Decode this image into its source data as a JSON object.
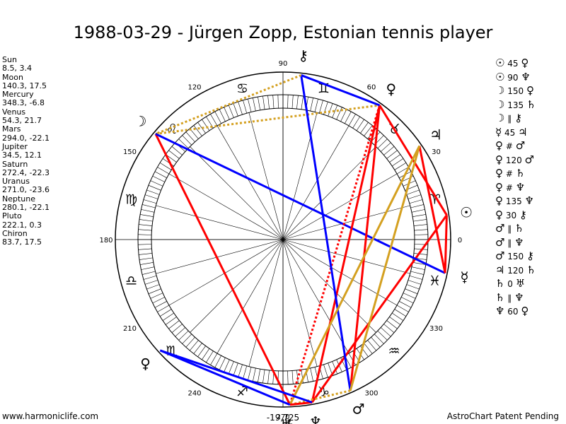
{
  "title": "1988-03-29 - Jürgen Zopp, Estonian tennis player",
  "footer": {
    "left": "www.harmoniclife.com",
    "right": "AstroChart Patent Pending"
  },
  "planet_list": [
    {
      "name": "Sun",
      "coords": "8.5, 3.4"
    },
    {
      "name": "Moon",
      "coords": "140.3, 17.5"
    },
    {
      "name": "Mercury",
      "coords": "348.3, -6.8"
    },
    {
      "name": "Venus",
      "coords": "54.3, 21.7"
    },
    {
      "name": "Mars",
      "coords": "294.0, -22.1"
    },
    {
      "name": "Jupiter",
      "coords": "34.5, 12.1"
    },
    {
      "name": "Saturn",
      "coords": "272.4, -22.3"
    },
    {
      "name": "Uranus",
      "coords": "271.0, -23.6"
    },
    {
      "name": "Neptune",
      "coords": "280.1, -22.1"
    },
    {
      "name": "Pluto",
      "coords": "222.1, 0.3"
    },
    {
      "name": "Chiron",
      "coords": "83.7, 17.5"
    }
  ],
  "aspect_list": [
    {
      "a": "☉",
      "asp": "45",
      "b": "♀"
    },
    {
      "a": "☉",
      "asp": "90",
      "b": "♆"
    },
    {
      "a": "☽",
      "asp": "150",
      "b": "♀"
    },
    {
      "a": "☽",
      "asp": "135",
      "b": "♄"
    },
    {
      "a": "☽",
      "asp": "∥",
      "b": "⚷"
    },
    {
      "a": "☿",
      "asp": "45",
      "b": "♃"
    },
    {
      "a": "♀",
      "asp": "#",
      "b": "♂"
    },
    {
      "a": "♀",
      "asp": "120",
      "b": "♂"
    },
    {
      "a": "♀",
      "asp": "#",
      "b": "♄"
    },
    {
      "a": "♀",
      "asp": "#",
      "b": "♆"
    },
    {
      "a": "♀",
      "asp": "135",
      "b": "♆"
    },
    {
      "a": "♀",
      "asp": "30",
      "b": "⚷"
    },
    {
      "a": "♂",
      "asp": "∥",
      "b": "♄"
    },
    {
      "a": "♂",
      "asp": "∥",
      "b": "♆"
    },
    {
      "a": "♂",
      "asp": "150",
      "b": "⚷"
    },
    {
      "a": "♃",
      "asp": "120",
      "b": "♄"
    },
    {
      "a": "♄",
      "asp": "0",
      "b": "♅"
    },
    {
      "a": "♄",
      "asp": "∥",
      "b": "♆"
    },
    {
      "a": "♆",
      "asp": "60",
      "b": "♀"
    }
  ],
  "chart_data": {
    "type": "other",
    "degree_labels": [
      {
        "deg": 0,
        "label": "0"
      },
      {
        "deg": 30,
        "label": "30"
      },
      {
        "deg": 60,
        "label": "60"
      },
      {
        "deg": 90,
        "label": "90"
      },
      {
        "deg": 120,
        "label": "120"
      },
      {
        "deg": 150,
        "label": "150"
      },
      {
        "deg": 180,
        "label": "180"
      },
      {
        "deg": 210,
        "label": "210"
      },
      {
        "deg": 240,
        "label": "240"
      },
      {
        "deg": 270,
        "label": "270"
      },
      {
        "deg": 300,
        "label": "300"
      },
      {
        "deg": 330,
        "label": "330"
      }
    ],
    "bottom_annotation": "-19,725",
    "signs": [
      {
        "name": "aries",
        "glyph": "♈",
        "deg": 15
      },
      {
        "name": "taurus",
        "glyph": "♉",
        "deg": 45
      },
      {
        "name": "gemini",
        "glyph": "♊",
        "deg": 75
      },
      {
        "name": "cancer",
        "glyph": "♋",
        "deg": 105
      },
      {
        "name": "leo",
        "glyph": "♌",
        "deg": 135
      },
      {
        "name": "virgo",
        "glyph": "♍",
        "deg": 165
      },
      {
        "name": "libra",
        "glyph": "♎",
        "deg": 195
      },
      {
        "name": "scorpio",
        "glyph": "♏",
        "deg": 225
      },
      {
        "name": "sagittarius",
        "glyph": "♐",
        "deg": 255
      },
      {
        "name": "capricorn",
        "glyph": "♑",
        "deg": 285
      },
      {
        "name": "aquarius",
        "glyph": "♒",
        "deg": 315
      },
      {
        "name": "pisces",
        "glyph": "♓",
        "deg": 345
      }
    ],
    "planets": [
      {
        "name": "Sun",
        "glyph": "☉",
        "lon": 8.5
      },
      {
        "name": "Moon",
        "glyph": "☽",
        "lon": 140.3
      },
      {
        "name": "Mercury",
        "glyph": "☿",
        "lon": 348.3
      },
      {
        "name": "Venus",
        "glyph": "♀",
        "lon": 54.3
      },
      {
        "name": "Mars",
        "glyph": "♂",
        "lon": 294.0
      },
      {
        "name": "Jupiter",
        "glyph": "♃",
        "lon": 34.5
      },
      {
        "name": "Saturn",
        "glyph": "♄",
        "lon": 272.4
      },
      {
        "name": "Uranus",
        "glyph": "♅",
        "lon": 271.0
      },
      {
        "name": "Neptune",
        "glyph": "♆",
        "lon": 280.1
      },
      {
        "name": "Pluto",
        "glyph": "♀",
        "lon": 222.1
      },
      {
        "name": "Chiron",
        "glyph": "⚷",
        "lon": 83.7
      }
    ],
    "aspect_lines": [
      {
        "from": "Sun",
        "to": "Venus",
        "color": "#ff0000",
        "dash": false
      },
      {
        "from": "Sun",
        "to": "Neptune",
        "color": "#ff0000",
        "dash": false
      },
      {
        "from": "Moon",
        "to": "Venus",
        "color": "#d4a020",
        "dash": true
      },
      {
        "from": "Moon",
        "to": "Saturn",
        "color": "#ff0000",
        "dash": false
      },
      {
        "from": "Moon",
        "to": "Mercury",
        "color": "#0000ff",
        "dash": false
      },
      {
        "from": "Mercury",
        "to": "Jupiter",
        "color": "#ff0000",
        "dash": false
      },
      {
        "from": "Venus",
        "to": "Mars",
        "color": "#ff0000",
        "dash": false
      },
      {
        "from": "Venus",
        "to": "Saturn",
        "color": "#ff0000",
        "dash": true
      },
      {
        "from": "Venus",
        "to": "Neptune",
        "color": "#ff0000",
        "dash": false
      },
      {
        "from": "Chiron",
        "to": "Venus",
        "color": "#0000ff",
        "dash": false
      },
      {
        "from": "Chiron",
        "to": "Mars",
        "color": "#0000ff",
        "dash": false
      },
      {
        "from": "Chiron",
        "to": "Moon",
        "color": "#d4a020",
        "dash": true
      },
      {
        "from": "Mars",
        "to": "Saturn",
        "color": "#d4a020",
        "dash": true
      },
      {
        "from": "Mars",
        "to": "Jupiter",
        "color": "#d4a020",
        "dash": false
      },
      {
        "from": "Jupiter",
        "to": "Saturn",
        "color": "#d4a020",
        "dash": false
      },
      {
        "from": "Saturn",
        "to": "Neptune",
        "color": "#ff0000",
        "dash": false
      },
      {
        "from": "Mercury",
        "to": "Sun",
        "color": "#ff0000",
        "dash": false
      },
      {
        "from": "Pluto",
        "to": "Neptune",
        "color": "#0000ff",
        "dash": false
      },
      {
        "from": "Pluto",
        "to": "Saturn",
        "color": "#0000ff",
        "dash": false
      }
    ]
  }
}
